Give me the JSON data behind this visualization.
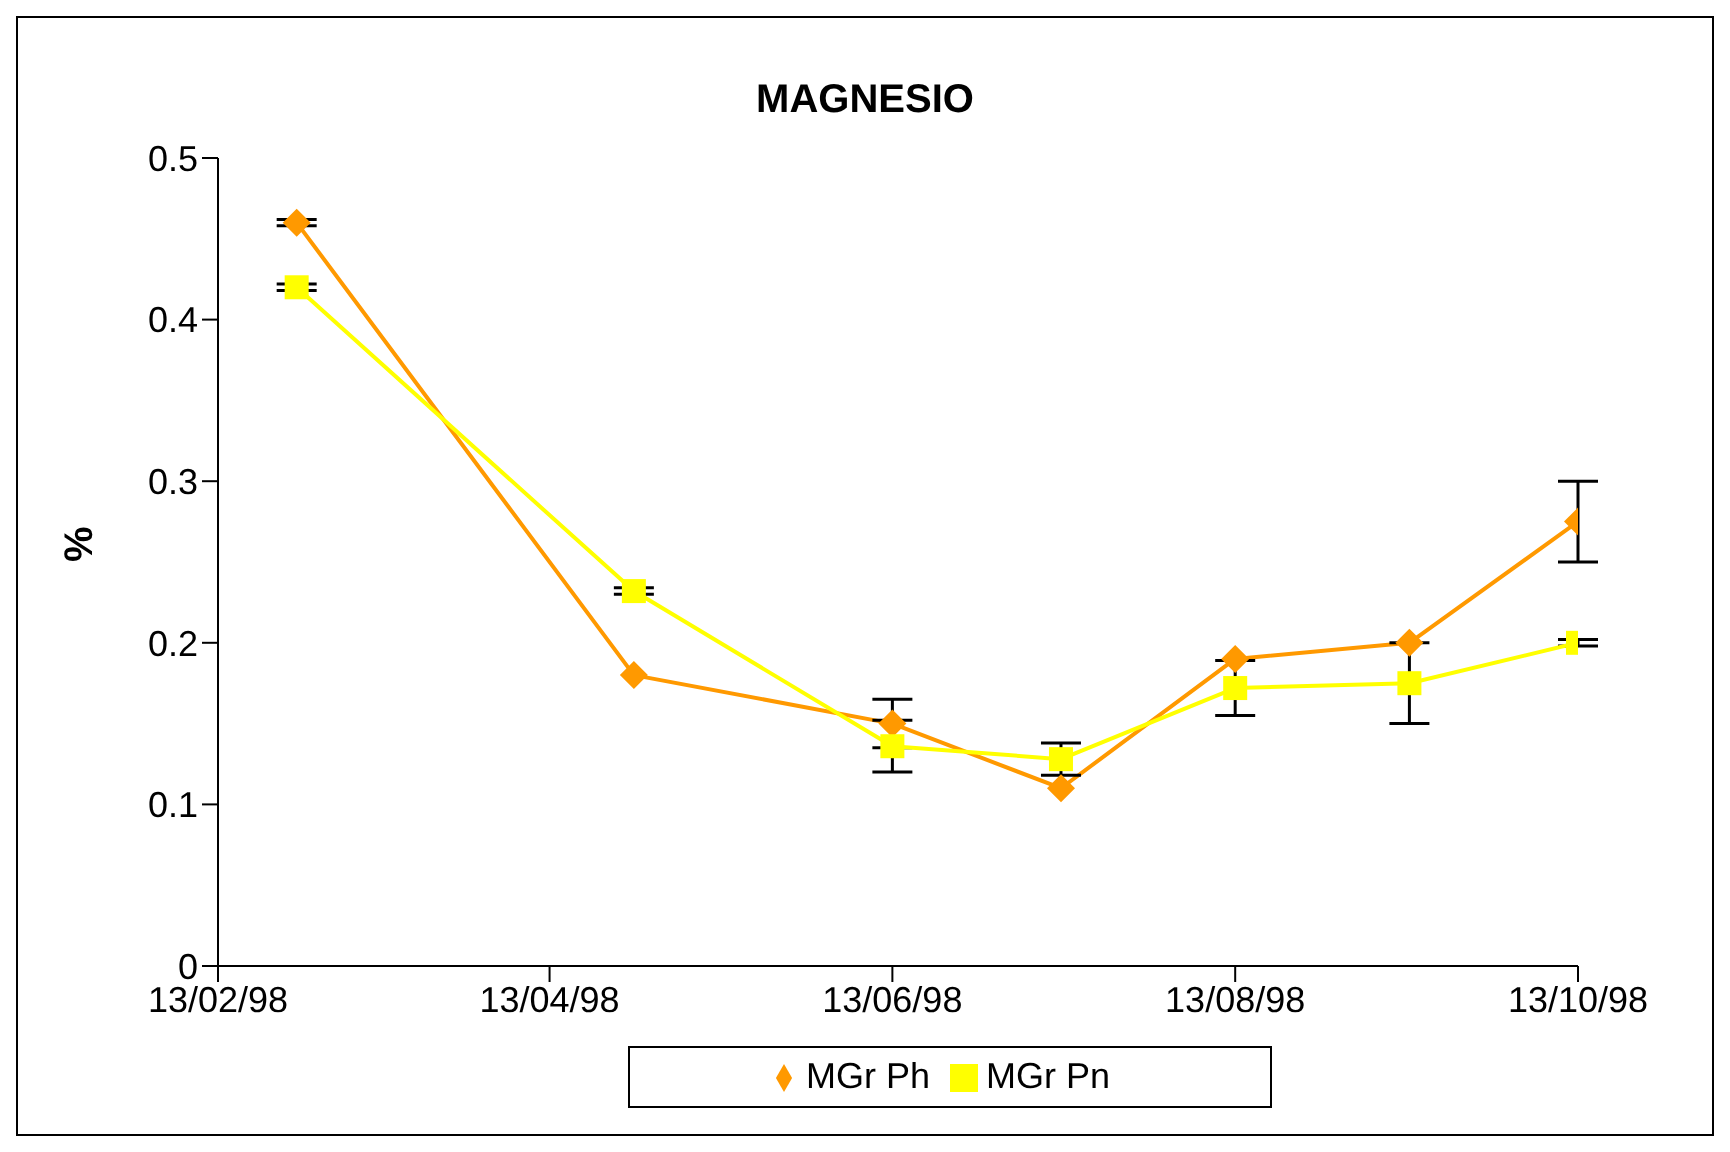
{
  "chart_data": {
    "type": "line",
    "title": "MAGNESIO",
    "ylabel": "%",
    "x": [
      "1998-02-27",
      "1998-04-28",
      "1998-06-13",
      "1998-07-13",
      "1998-08-13",
      "1998-09-13",
      "1998-10-13"
    ],
    "series": [
      {
        "name": "MGr Ph",
        "color": "#ff9900",
        "marker": "diamond",
        "values": [
          0.46,
          0.18,
          0.15,
          0.11,
          0.19,
          0.2,
          0.275
        ],
        "errors": [
          0.002,
          null,
          0.015,
          null,
          null,
          null,
          0.025
        ]
      },
      {
        "name": "MGr Pn",
        "color": "#ffff00",
        "marker": "square",
        "values": [
          0.42,
          0.232,
          0.136,
          0.128,
          0.172,
          0.175,
          0.2
        ],
        "errors": [
          0.002,
          0.002,
          0.016,
          0.01,
          0.017,
          0.025,
          0.002
        ]
      }
    ],
    "xlim": [
      "1998-02-13",
      "1998-10-13"
    ],
    "xticks": [
      {
        "value": "1998-02-13",
        "label": "13/02/98"
      },
      {
        "value": "1998-04-13",
        "label": "13/04/98"
      },
      {
        "value": "1998-06-13",
        "label": "13/06/98"
      },
      {
        "value": "1998-08-13",
        "label": "13/08/98"
      },
      {
        "value": "1998-10-13",
        "label": "13/10/98"
      }
    ],
    "ylim": [
      0,
      0.5
    ],
    "yticks": [
      0,
      0.1,
      0.2,
      0.3,
      0.4,
      0.5
    ],
    "grid": false,
    "legend": "bottom"
  }
}
